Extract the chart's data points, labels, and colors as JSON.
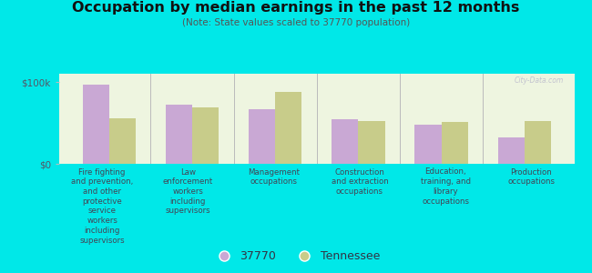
{
  "title": "Occupation by median earnings in the past 12 months",
  "subtitle": "(Note: State values scaled to 37770 population)",
  "background_color": "#00e8e8",
  "plot_bg_color": "#eef5e0",
  "bar_color_37770": "#c9a8d4",
  "bar_color_tennessee": "#c8cc8a",
  "categories": [
    "Fire fighting\nand prevention,\nand other\nprotective\nservice\nworkers\nincluding\nsupervisors",
    "Law\nenforcement\nworkers\nincluding\nsupervisors",
    "Management\noccupations",
    "Construction\nand extraction\noccupations",
    "Education,\ntraining, and\nlibrary\noccupations",
    "Production\noccupations"
  ],
  "values_37770": [
    97000,
    72000,
    67000,
    55000,
    48000,
    32000
  ],
  "values_tennessee": [
    56000,
    69000,
    88000,
    52000,
    51000,
    52000
  ],
  "ylim": [
    0,
    110000
  ],
  "yticks": [
    0,
    100000
  ],
  "ytick_labels": [
    "$0",
    "$100k"
  ],
  "legend_37770": "37770",
  "legend_tennessee": "Tennessee",
  "watermark": "City-Data.com"
}
